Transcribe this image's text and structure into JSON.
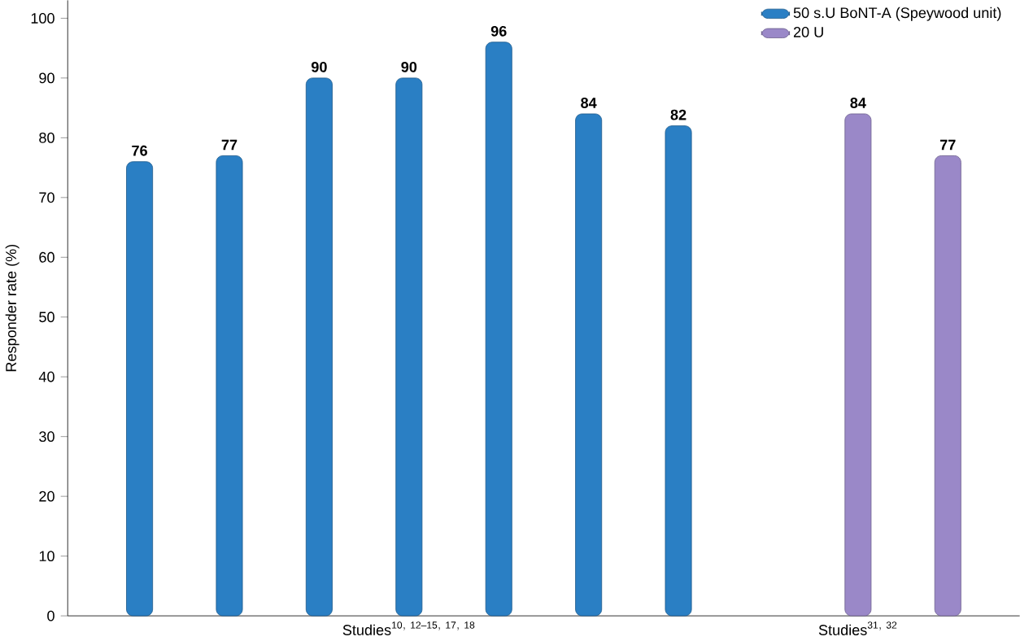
{
  "chart_data": {
    "type": "bar",
    "ylabel": "Responder rate (%)",
    "ylim": [
      0,
      103
    ],
    "yticks": [
      0,
      10,
      20,
      30,
      40,
      50,
      60,
      70,
      80,
      90,
      100
    ],
    "categories": [
      null,
      null,
      null,
      "\\mathrm{Studies}^{\\mathrm{10,\\ 12–15,\\ 17,\\ 18}}",
      null,
      null,
      null,
      null,
      "\\mathrm{Studies}^{\\mathrm{31,\\ 32}}",
      null
    ],
    "series": [
      {
        "name": "50 s.U BoNT-A (Speywood unit)",
        "color": "#2a7fc4",
        "values": [
          76,
          77,
          90,
          90,
          96,
          84,
          82,
          null,
          null,
          null
        ]
      },
      {
        "name": "20 U",
        "color": "#9a88c8",
        "values": [
          null,
          null,
          null,
          null,
          null,
          null,
          null,
          null,
          84,
          77
        ]
      }
    ],
    "data_labels": true,
    "legend": "top right",
    "grid": false
  }
}
